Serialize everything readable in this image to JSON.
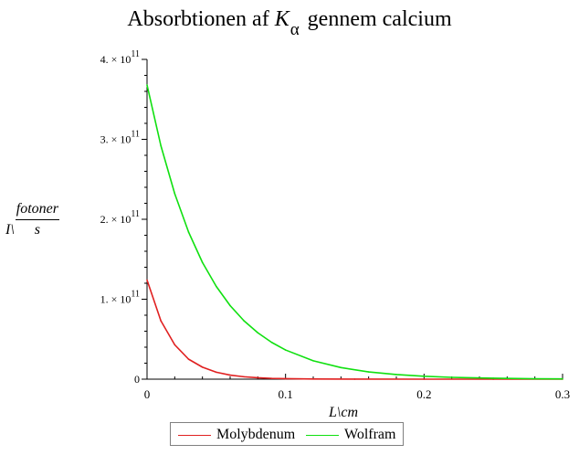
{
  "chart_data": {
    "type": "line",
    "title": {
      "prefix": "Absorbtionen af ",
      "symbol": "K",
      "subscript": "α",
      "suffix": " gennem calcium"
    },
    "xlabel": "L\\cm",
    "ylabel": {
      "prefix": "I\\",
      "numerator": "fotoner",
      "denominator": "s"
    },
    "xlim": [
      0,
      0.3
    ],
    "ylim": [
      0,
      400000000000.0
    ],
    "x_ticks": [
      {
        "value": 0,
        "label": "0"
      },
      {
        "value": 0.1,
        "label": "0.1"
      },
      {
        "value": 0.2,
        "label": "0.2"
      },
      {
        "value": 0.3,
        "label": "0.3"
      }
    ],
    "y_ticks": [
      {
        "value": 0,
        "label": "0",
        "mantissa": "0",
        "exponent": ""
      },
      {
        "value": 100000000000.0,
        "label": "1. × 10^11",
        "mantissa": "1. × 10",
        "exponent": "11"
      },
      {
        "value": 200000000000.0,
        "label": "2. × 10^11",
        "mantissa": "2. × 10",
        "exponent": "11"
      },
      {
        "value": 300000000000.0,
        "label": "3. × 10^11",
        "mantissa": "3. × 10",
        "exponent": "11"
      },
      {
        "value": 400000000000.0,
        "label": "4. × 10^11",
        "mantissa": "4. × 10",
        "exponent": "11"
      }
    ],
    "series": [
      {
        "name": "Molybdenum",
        "color": "#e02020",
        "x": [
          0,
          0.01,
          0.02,
          0.03,
          0.04,
          0.05,
          0.06,
          0.07,
          0.08,
          0.09,
          0.1,
          0.12,
          0.15,
          0.2,
          0.25,
          0.3
        ],
        "y": [
          124000000000.0,
          73000000000.0,
          43000000000.0,
          25000000000.0,
          15000000000.0,
          8700000000.0,
          5100000000.0,
          3000000000.0,
          1800000000.0,
          1000000000.0,
          600000000.0,
          210000000.0,
          42000000.0,
          2900000.0,
          200000.0,
          14000.0
        ]
      },
      {
        "name": "Wolfram",
        "color": "#10e010",
        "x": [
          0,
          0.01,
          0.02,
          0.03,
          0.04,
          0.05,
          0.06,
          0.07,
          0.08,
          0.09,
          0.1,
          0.12,
          0.14,
          0.16,
          0.18,
          0.2,
          0.22,
          0.25,
          0.28,
          0.3
        ],
        "y": [
          368000000000.0,
          292000000000.0,
          232000000000.0,
          184000000000.0,
          146000000000.0,
          116000000000.0,
          92000000000.0,
          73000000000.0,
          58000000000.0,
          46000000000.0,
          36500000000.0,
          23000000000.0,
          14500000000.0,
          9100000000.0,
          5800000000.0,
          3600000000.0,
          2300000000.0,
          1200000000.0,
          550000000.0,
          350000000.0
        ]
      }
    ],
    "grid": false,
    "legend_position": "bottom"
  }
}
